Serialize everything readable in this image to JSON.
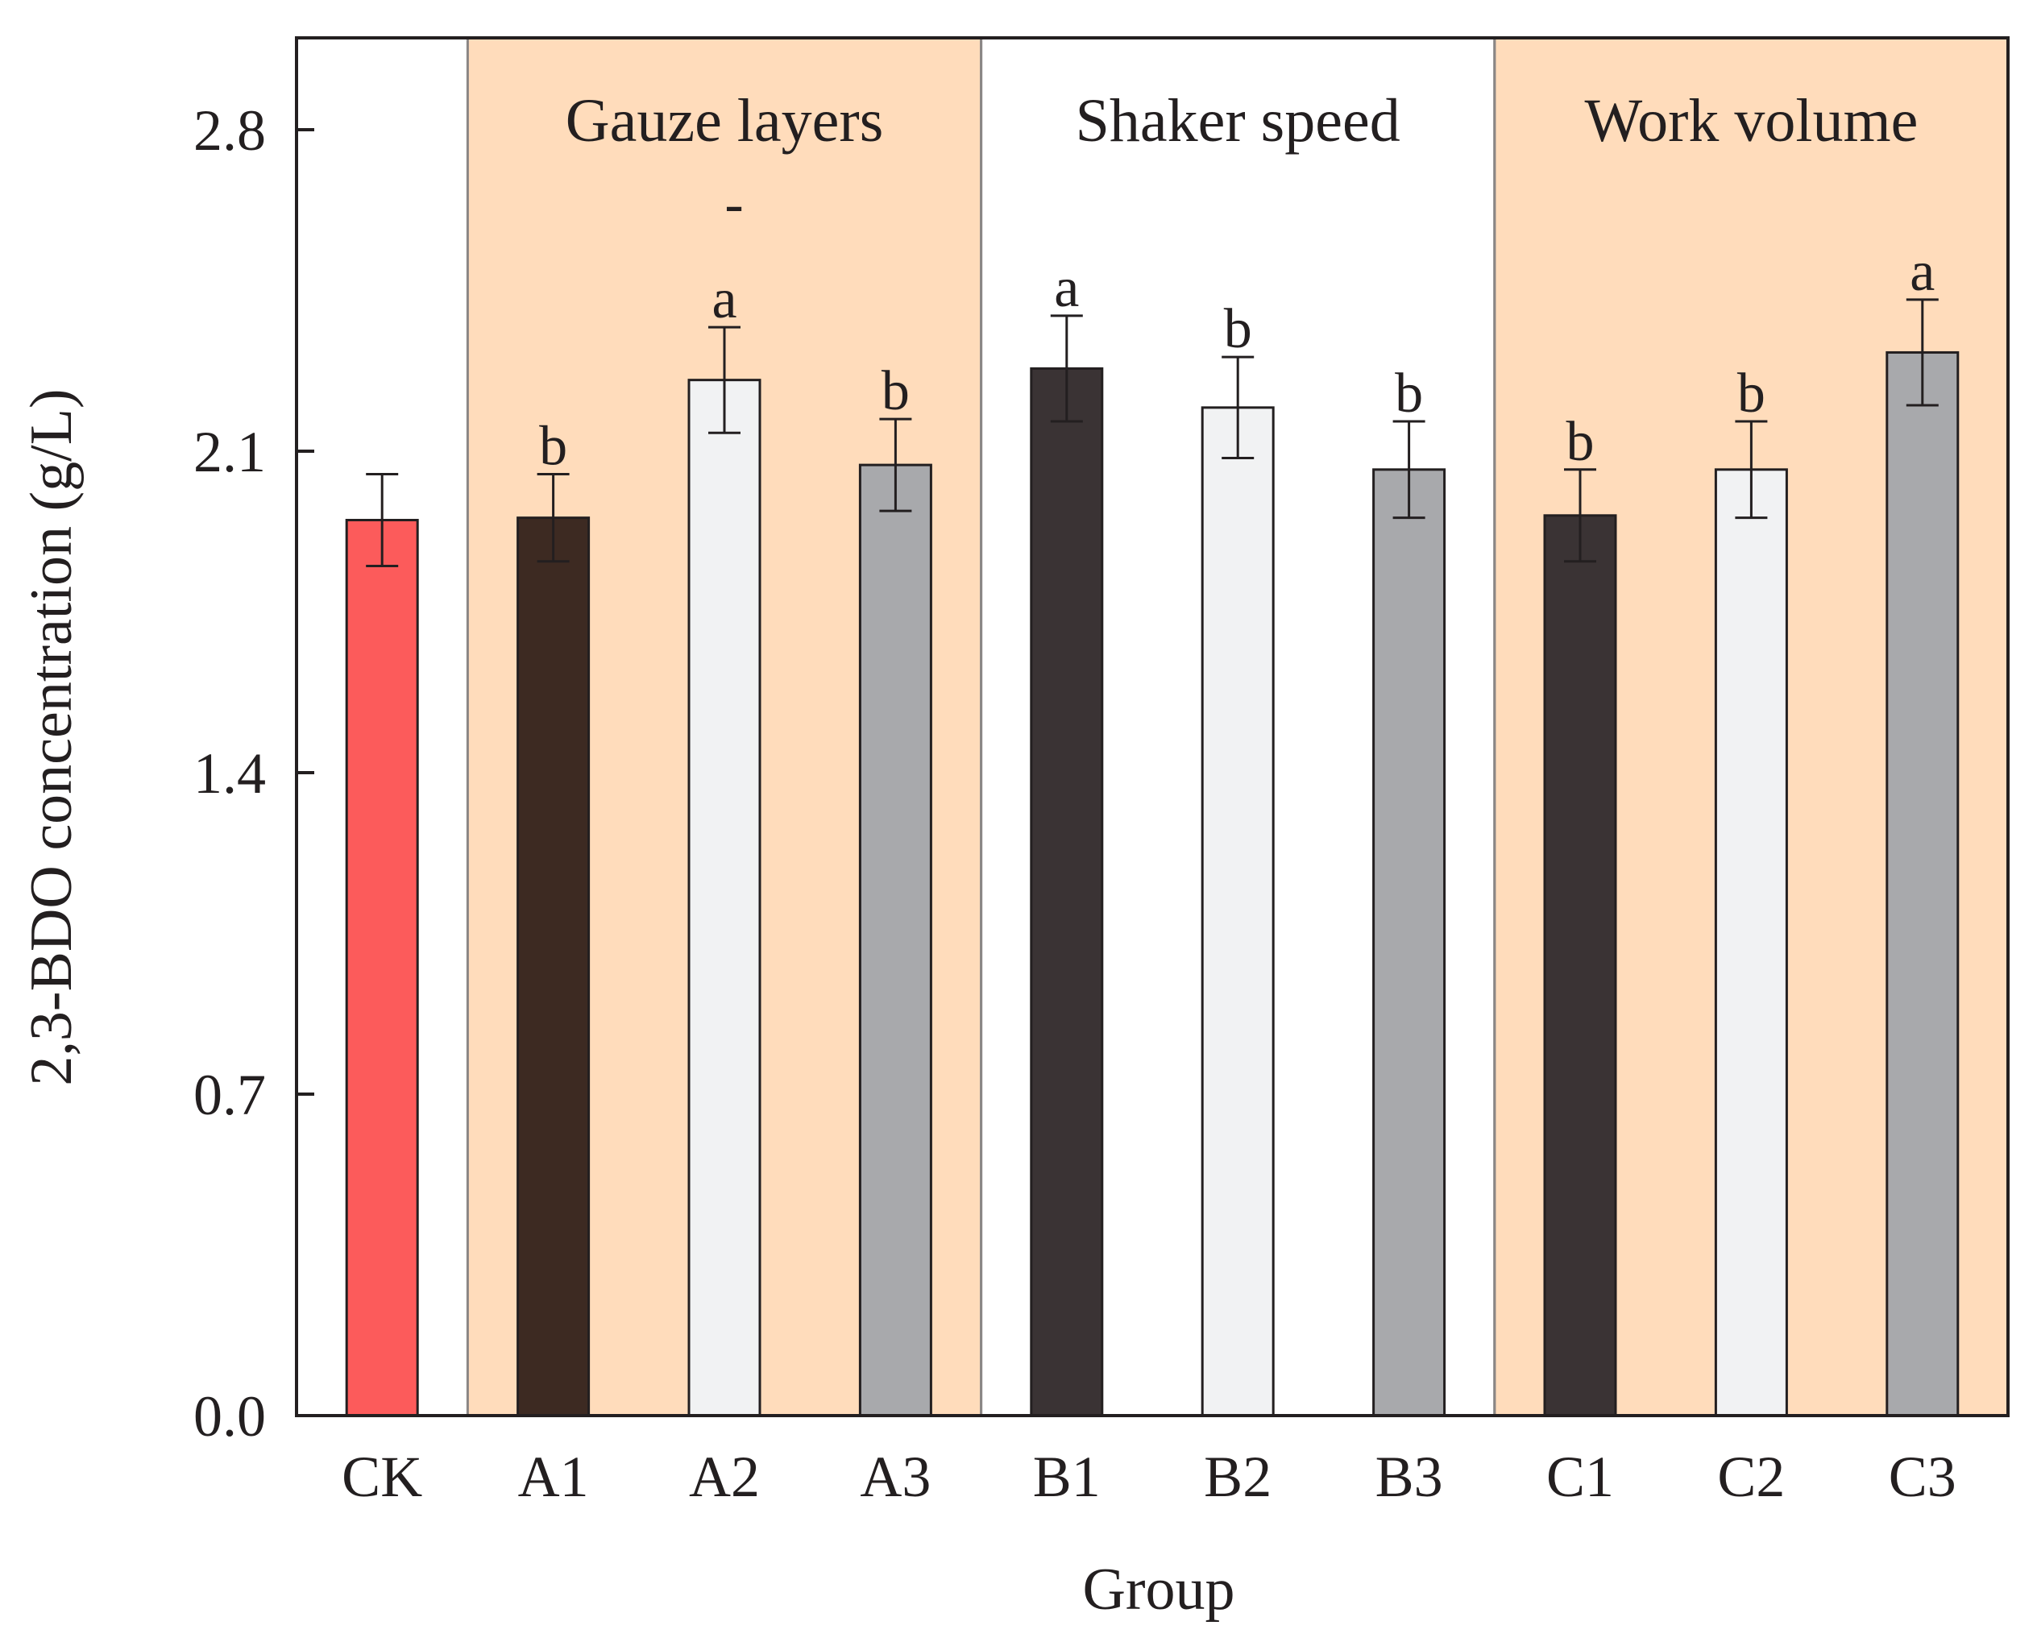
{
  "chart_data": {
    "type": "bar",
    "title": "",
    "xlabel": "Group",
    "ylabel": "2,3-BDO concentration (g/L)",
    "ylim": [
      0,
      3.0
    ],
    "yticks": [
      0.0,
      0.7,
      1.4,
      2.1,
      2.8
    ],
    "ytick_labels": [
      "0.0",
      "0.7",
      "1.4",
      "2.1",
      "2.8"
    ],
    "grid": false,
    "categories": [
      "CK",
      "A1",
      "A2",
      "A3",
      "B1",
      "B2",
      "B3",
      "C1",
      "C2",
      "C3"
    ],
    "values": [
      1.95,
      1.955,
      2.255,
      2.07,
      2.28,
      2.195,
      2.06,
      1.96,
      2.06,
      2.315
    ],
    "errors": [
      0.1,
      0.095,
      0.115,
      0.1,
      0.115,
      0.11,
      0.105,
      0.1,
      0.105,
      0.115
    ],
    "significance": [
      "",
      "b",
      "a",
      "b",
      "a",
      "b",
      "b",
      "b",
      "b",
      "a"
    ],
    "extra_mark_A2": "-",
    "bar_colors": [
      "#fc5b5b",
      "#3d2a22",
      "#f1f2f3",
      "#a8a9ac",
      "#3a3334",
      "#f1f2f3",
      "#a8a9ac",
      "#3a3334",
      "#f1f2f3",
      "#a8a9ac"
    ],
    "groups": [
      {
        "name": "Gauze layers",
        "categories": [
          "A1",
          "A2",
          "A3"
        ],
        "shaded": true
      },
      {
        "name": "Shaker speed",
        "categories": [
          "B1",
          "B2",
          "B3"
        ],
        "shaded": false
      },
      {
        "name": "Work volume",
        "categories": [
          "C1",
          "C2",
          "C3"
        ],
        "shaded": true
      }
    ],
    "shade_color": "#ffdcbb",
    "axis_color": "#231f20"
  }
}
